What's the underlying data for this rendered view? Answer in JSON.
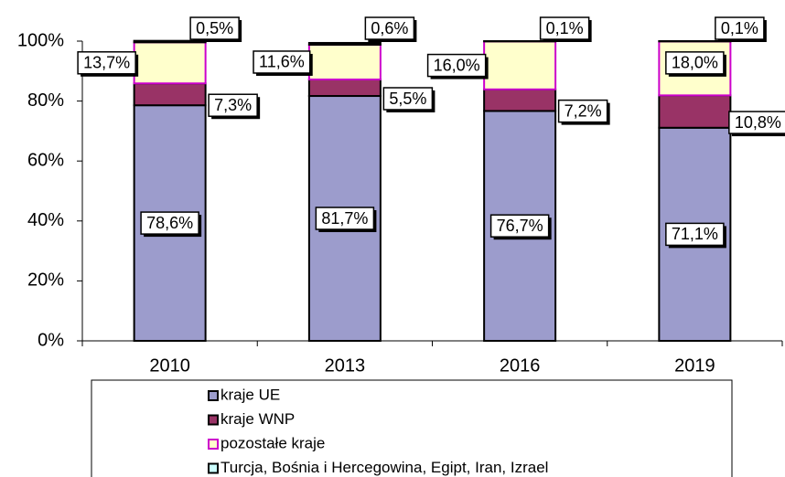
{
  "chart_data": {
    "type": "stacked_bar",
    "categories": [
      "2010",
      "2013",
      "2016",
      "2019"
    ],
    "series": [
      {
        "name": "kraje UE",
        "color": "#9c9ccc",
        "values": [
          78.6,
          81.7,
          76.7,
          71.1
        ],
        "value_labels": [
          "78,6%",
          "81,7%",
          "76,7%",
          "71,1%"
        ]
      },
      {
        "name": "kraje WNP",
        "color": "#993366",
        "values": [
          7.3,
          5.5,
          7.2,
          10.8
        ],
        "value_labels": [
          "7,3%",
          "5,5%",
          "7,2%",
          "10,8%"
        ]
      },
      {
        "name": "pozostałe kraje",
        "color": "#ffffcc",
        "values": [
          13.7,
          11.6,
          16.0,
          18.0
        ],
        "value_labels": [
          "13,7%",
          "11,6%",
          "16,0%",
          "18,0%"
        ]
      },
      {
        "name": "Turcja, Bośnia i Hercegowina, Egipt, Iran, Izrael",
        "color": "#ccffff",
        "values": [
          0.5,
          0.6,
          0.1,
          0.1
        ],
        "value_labels": [
          "0,5%",
          "0,6%",
          "0,1%",
          "0,1%"
        ]
      }
    ],
    "ylim": [
      0,
      100
    ],
    "yticks": [
      {
        "value": 0,
        "label": "0%"
      },
      {
        "value": 20,
        "label": "20%"
      },
      {
        "value": 40,
        "label": "40%"
      },
      {
        "value": 60,
        "label": "60%"
      },
      {
        "value": 80,
        "label": "80%"
      },
      {
        "value": 100,
        "label": "100%"
      }
    ]
  }
}
